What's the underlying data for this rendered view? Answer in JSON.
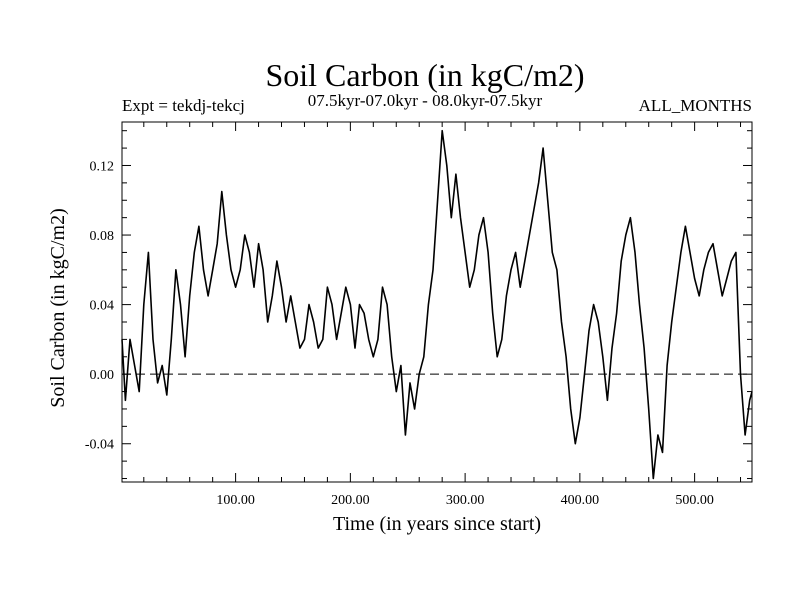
{
  "chart_data": {
    "type": "line",
    "title": "Soil Carbon (in kgC/m2)",
    "subtitle": "07.5kyr-07.0kyr - 08.0kyr-07.5kyr",
    "experiment": "Expt = tekdj-tekcj",
    "season": "ALL_MONTHS",
    "xlabel": "Time (in years since start)",
    "ylabel": "Soil Carbon (in kgC/m2)",
    "xlim": [
      1,
      550
    ],
    "ylim": [
      -0.062,
      0.145
    ],
    "xticks": [
      100,
      200,
      300,
      400,
      500
    ],
    "xtick_labels": [
      "100.00",
      "200.00",
      "300.00",
      "400.00",
      "500.00"
    ],
    "yticks": [
      -0.04,
      0.0,
      0.04,
      0.08,
      0.12
    ],
    "ytick_labels": [
      "-0.04",
      "0.00",
      "0.04",
      "0.08",
      "0.12"
    ],
    "reference_line": 0.0,
    "series": [
      {
        "name": "Soil Carbon",
        "x": [
          1,
          4,
          8,
          12,
          16,
          20,
          24,
          28,
          32,
          36,
          40,
          44,
          48,
          52,
          56,
          60,
          64,
          68,
          72,
          76,
          80,
          84,
          88,
          92,
          96,
          100,
          104,
          108,
          112,
          116,
          120,
          124,
          128,
          132,
          136,
          140,
          144,
          148,
          152,
          156,
          160,
          164,
          168,
          172,
          176,
          180,
          184,
          188,
          192,
          196,
          200,
          204,
          208,
          212,
          216,
          220,
          224,
          228,
          232,
          236,
          240,
          244,
          248,
          252,
          256,
          260,
          264,
          268,
          272,
          276,
          280,
          284,
          288,
          292,
          296,
          300,
          304,
          308,
          312,
          316,
          320,
          324,
          328,
          332,
          336,
          340,
          344,
          348,
          352,
          356,
          360,
          364,
          368,
          372,
          376,
          380,
          384,
          388,
          392,
          396,
          400,
          404,
          408,
          412,
          416,
          420,
          424,
          428,
          432,
          436,
          440,
          444,
          448,
          452,
          456,
          460,
          464,
          468,
          472,
          476,
          480,
          484,
          488,
          492,
          496,
          500,
          504,
          508,
          512,
          516,
          520,
          524,
          528,
          532,
          536,
          540,
          544,
          548,
          550
        ],
        "values": [
          0.02,
          -0.015,
          0.02,
          0.005,
          -0.01,
          0.04,
          0.07,
          0.02,
          -0.005,
          0.005,
          -0.012,
          0.02,
          0.06,
          0.04,
          0.01,
          0.045,
          0.07,
          0.085,
          0.06,
          0.045,
          0.06,
          0.075,
          0.105,
          0.08,
          0.06,
          0.05,
          0.06,
          0.08,
          0.07,
          0.05,
          0.075,
          0.06,
          0.03,
          0.045,
          0.065,
          0.05,
          0.03,
          0.045,
          0.03,
          0.015,
          0.02,
          0.04,
          0.03,
          0.015,
          0.02,
          0.05,
          0.04,
          0.02,
          0.035,
          0.05,
          0.04,
          0.015,
          0.04,
          0.035,
          0.02,
          0.01,
          0.02,
          0.05,
          0.04,
          0.01,
          -0.01,
          0.005,
          -0.035,
          -0.005,
          -0.02,
          0.0,
          0.01,
          0.04,
          0.06,
          0.1,
          0.14,
          0.12,
          0.09,
          0.115,
          0.09,
          0.07,
          0.05,
          0.06,
          0.08,
          0.09,
          0.07,
          0.035,
          0.01,
          0.02,
          0.045,
          0.06,
          0.07,
          0.05,
          0.065,
          0.08,
          0.095,
          0.11,
          0.13,
          0.1,
          0.07,
          0.06,
          0.03,
          0.01,
          -0.02,
          -0.04,
          -0.025,
          0.0,
          0.025,
          0.04,
          0.03,
          0.01,
          -0.015,
          0.015,
          0.035,
          0.065,
          0.08,
          0.09,
          0.07,
          0.04,
          0.015,
          -0.02,
          -0.06,
          -0.035,
          -0.045,
          0.005,
          0.03,
          0.05,
          0.07,
          0.085,
          0.07,
          0.055,
          0.045,
          0.06,
          0.07,
          0.075,
          0.06,
          0.045,
          0.055,
          0.065,
          0.07,
          0.0,
          -0.035,
          -0.015,
          -0.01
        ]
      }
    ]
  }
}
